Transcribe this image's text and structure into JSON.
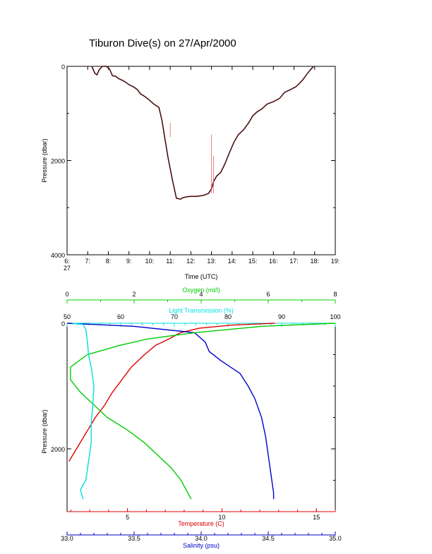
{
  "page": {
    "title": "Tiburon Dive(s) on 27/Apr/2000"
  },
  "colors": {
    "axis": "#000000",
    "track": "#000000",
    "track_highlight": "#e06060",
    "temperature": "#dd0000",
    "salinity": "#0000cc",
    "oxygen": "#00cc00",
    "light_transmission": "#00e0e0"
  },
  "chart_data": [
    {
      "id": "dive-track",
      "type": "line",
      "title": "Tiburon Dive(s) on 27/Apr/2000",
      "xlabel": "Time (UTC)",
      "ylabel": "Pressure (dbar)",
      "x_ticks": [
        "6:",
        "7:",
        "8:",
        "9:",
        "10:",
        "11:",
        "12:",
        "13:",
        "14:",
        "15:",
        "16:",
        "17:",
        "18:",
        "19:"
      ],
      "x_subtick": "27",
      "y_ticks": [
        "0",
        "2000",
        "4000"
      ],
      "xlim": [
        6,
        19
      ],
      "ylim": [
        4000,
        0
      ],
      "series": [
        {
          "x": [
            7.2,
            7.35,
            7.45,
            7.55,
            7.7,
            7.9,
            8.05,
            8.2,
            8.35,
            8.5,
            8.7,
            8.85,
            9.0,
            9.2,
            9.4,
            9.55,
            9.8,
            10.0,
            10.2,
            10.45,
            10.6,
            10.75,
            10.9,
            11.1,
            11.3,
            11.5,
            11.6,
            11.8,
            12.0,
            12.3,
            12.6,
            12.85,
            13.0,
            13.1,
            13.25,
            13.45,
            13.65,
            13.9,
            14.1,
            14.3,
            14.55,
            14.8,
            15.0,
            15.2,
            15.45,
            15.7,
            16.0,
            16.3,
            16.55,
            16.8,
            17.1,
            17.4,
            17.6,
            17.8,
            17.95
          ],
          "y": [
            0,
            150,
            180,
            80,
            0,
            0,
            50,
            200,
            210,
            260,
            300,
            340,
            390,
            430,
            490,
            580,
            650,
            720,
            800,
            870,
            1150,
            1550,
            1950,
            2400,
            2800,
            2820,
            2790,
            2770,
            2760,
            2760,
            2740,
            2700,
            2600,
            2450,
            2330,
            2250,
            2070,
            1800,
            1600,
            1450,
            1350,
            1200,
            1050,
            970,
            900,
            800,
            750,
            680,
            550,
            500,
            430,
            300,
            180,
            70,
            0
          ]
        }
      ]
    },
    {
      "id": "ctd-profile",
      "type": "line",
      "ylabel": "Pressure (dbar)",
      "y_ticks": [
        "0",
        "2000"
      ],
      "ylim": [
        0,
        4000
      ],
      "axes": {
        "oxygen": {
          "label": "Oxygen (ml/l)",
          "range": [
            0,
            8
          ],
          "ticks": [
            "0",
            "2",
            "4",
            "6",
            "8"
          ]
        },
        "light_transmission": {
          "label": "Light Transmission (%)",
          "range": [
            50,
            100
          ],
          "ticks": [
            "50",
            "60",
            "70",
            "80",
            "90",
            "100"
          ]
        },
        "temperature": {
          "label": "Temperature (C)",
          "range": [
            1.8,
            16
          ],
          "ticks": [
            "5",
            "10",
            "15"
          ]
        },
        "salinity": {
          "label": "Salinity (psu)",
          "range": [
            33,
            35
          ],
          "ticks": [
            "33.0",
            "33.5",
            "34.0",
            "34.5",
            "35.0"
          ]
        }
      },
      "series": [
        {
          "name": "Temperature (C)",
          "axis": "temperature",
          "pressure": [
            0,
            30,
            80,
            150,
            250,
            350,
            500,
            700,
            900,
            1100,
            1300,
            1500,
            1700,
            1900,
            2100,
            2200
          ],
          "values": [
            12.8,
            10.5,
            8.8,
            7.8,
            7.2,
            6.5,
            5.9,
            5.2,
            4.7,
            4.2,
            3.8,
            3.3,
            2.9,
            2.5,
            2.1,
            1.9
          ]
        },
        {
          "name": "Salinity (psu)",
          "axis": "salinity",
          "pressure": [
            0,
            50,
            150,
            300,
            450,
            600,
            800,
            1000,
            1200,
            1500,
            1800,
            2100,
            2400,
            2700,
            2800
          ],
          "values": [
            33.0,
            33.5,
            33.95,
            34.03,
            34.06,
            34.15,
            34.29,
            34.35,
            34.4,
            34.45,
            34.48,
            34.5,
            34.52,
            34.54,
            34.54
          ]
        },
        {
          "name": "Oxygen (ml/l)",
          "axis": "oxygen",
          "pressure": [
            0,
            50,
            150,
            250,
            350,
            500,
            700,
            900,
            1100,
            1300,
            1500,
            1700,
            1900,
            2100,
            2300,
            2500,
            2700,
            2800
          ],
          "values": [
            8.0,
            5.8,
            3.8,
            2.4,
            1.6,
            0.6,
            0.1,
            0.1,
            0.4,
            0.8,
            1.2,
            1.8,
            2.3,
            2.7,
            3.1,
            3.4,
            3.6,
            3.7
          ]
        },
        {
          "name": "Light Transmission (%)",
          "axis": "light_transmission",
          "pressure": [
            0,
            20,
            100,
            300,
            500,
            700,
            1000,
            1300,
            1600,
            1900,
            2200,
            2500,
            2650,
            2800
          ],
          "values": [
            51.0,
            53.0,
            53.5,
            53.8,
            54.0,
            54.5,
            55.0,
            54.8,
            54.5,
            54.5,
            54.0,
            53.5,
            52.5,
            53.0
          ]
        }
      ]
    }
  ]
}
